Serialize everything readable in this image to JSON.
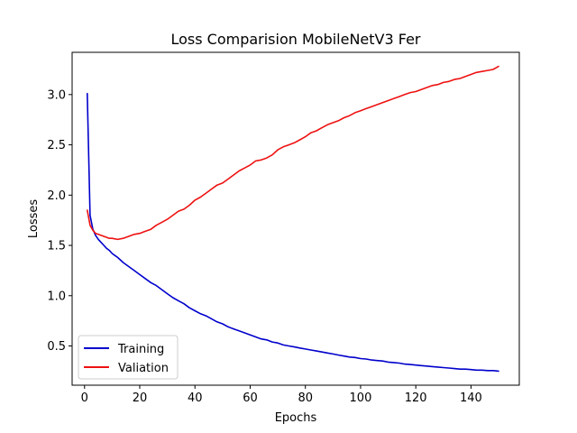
{
  "chart_data": {
    "type": "line",
    "title": "Loss Comparision MobileNetV3 Fer",
    "xlabel": "Epochs",
    "ylabel": "Losses",
    "xlim": [
      -4.5,
      157.5
    ],
    "ylim": [
      0.11,
      3.42
    ],
    "xticks": [
      0,
      20,
      40,
      60,
      80,
      100,
      120,
      140
    ],
    "yticks": [
      0.5,
      1.0,
      1.5,
      2.0,
      2.5,
      3.0
    ],
    "xtick_labels": [
      "0",
      "20",
      "40",
      "60",
      "80",
      "100",
      "120",
      "140"
    ],
    "ytick_labels": [
      "0.5",
      "1.0",
      "1.5",
      "2.0",
      "2.5",
      "3.0"
    ],
    "grid": false,
    "legend_position": "lower-left",
    "series": [
      {
        "name": "Training",
        "color": "#0000cc",
        "points": [
          [
            1,
            3.01
          ],
          [
            2,
            1.8
          ],
          [
            3,
            1.66
          ],
          [
            4,
            1.6
          ],
          [
            5,
            1.56
          ],
          [
            6,
            1.53
          ],
          [
            7,
            1.5
          ],
          [
            8,
            1.47
          ],
          [
            9,
            1.45
          ],
          [
            10,
            1.42
          ],
          [
            12,
            1.38
          ],
          [
            14,
            1.33
          ],
          [
            16,
            1.29
          ],
          [
            18,
            1.25
          ],
          [
            20,
            1.21
          ],
          [
            22,
            1.17
          ],
          [
            24,
            1.13
          ],
          [
            26,
            1.1
          ],
          [
            28,
            1.06
          ],
          [
            30,
            1.02
          ],
          [
            32,
            0.98
          ],
          [
            34,
            0.95
          ],
          [
            36,
            0.92
          ],
          [
            38,
            0.88
          ],
          [
            40,
            0.85
          ],
          [
            42,
            0.82
          ],
          [
            44,
            0.8
          ],
          [
            46,
            0.77
          ],
          [
            48,
            0.74
          ],
          [
            50,
            0.72
          ],
          [
            52,
            0.69
          ],
          [
            54,
            0.67
          ],
          [
            56,
            0.65
          ],
          [
            58,
            0.63
          ],
          [
            60,
            0.61
          ],
          [
            62,
            0.59
          ],
          [
            64,
            0.57
          ],
          [
            66,
            0.56
          ],
          [
            68,
            0.54
          ],
          [
            70,
            0.53
          ],
          [
            72,
            0.51
          ],
          [
            74,
            0.5
          ],
          [
            76,
            0.49
          ],
          [
            78,
            0.48
          ],
          [
            80,
            0.47
          ],
          [
            82,
            0.46
          ],
          [
            84,
            0.45
          ],
          [
            86,
            0.44
          ],
          [
            88,
            0.43
          ],
          [
            90,
            0.42
          ],
          [
            92,
            0.41
          ],
          [
            94,
            0.4
          ],
          [
            96,
            0.39
          ],
          [
            98,
            0.385
          ],
          [
            100,
            0.375
          ],
          [
            102,
            0.37
          ],
          [
            104,
            0.36
          ],
          [
            106,
            0.355
          ],
          [
            108,
            0.35
          ],
          [
            110,
            0.34
          ],
          [
            112,
            0.335
          ],
          [
            114,
            0.33
          ],
          [
            116,
            0.32
          ],
          [
            118,
            0.315
          ],
          [
            120,
            0.31
          ],
          [
            122,
            0.305
          ],
          [
            124,
            0.3
          ],
          [
            126,
            0.295
          ],
          [
            128,
            0.29
          ],
          [
            130,
            0.285
          ],
          [
            132,
            0.28
          ],
          [
            134,
            0.275
          ],
          [
            136,
            0.27
          ],
          [
            138,
            0.27
          ],
          [
            140,
            0.265
          ],
          [
            142,
            0.26
          ],
          [
            144,
            0.26
          ],
          [
            146,
            0.255
          ],
          [
            148,
            0.255
          ],
          [
            150,
            0.25
          ]
        ]
      },
      {
        "name": "Valiation",
        "color": "#ee1111",
        "points": [
          [
            1,
            1.85
          ],
          [
            2,
            1.7
          ],
          [
            3,
            1.65
          ],
          [
            4,
            1.62
          ],
          [
            5,
            1.61
          ],
          [
            6,
            1.6
          ],
          [
            7,
            1.59
          ],
          [
            8,
            1.58
          ],
          [
            9,
            1.57
          ],
          [
            10,
            1.57
          ],
          [
            12,
            1.56
          ],
          [
            14,
            1.57
          ],
          [
            16,
            1.59
          ],
          [
            18,
            1.61
          ],
          [
            20,
            1.62
          ],
          [
            22,
            1.64
          ],
          [
            24,
            1.66
          ],
          [
            26,
            1.7
          ],
          [
            28,
            1.73
          ],
          [
            30,
            1.76
          ],
          [
            32,
            1.8
          ],
          [
            34,
            1.84
          ],
          [
            36,
            1.86
          ],
          [
            38,
            1.9
          ],
          [
            40,
            1.95
          ],
          [
            42,
            1.98
          ],
          [
            44,
            2.02
          ],
          [
            46,
            2.06
          ],
          [
            48,
            2.1
          ],
          [
            50,
            2.12
          ],
          [
            52,
            2.16
          ],
          [
            54,
            2.2
          ],
          [
            56,
            2.24
          ],
          [
            58,
            2.27
          ],
          [
            60,
            2.3
          ],
          [
            62,
            2.34
          ],
          [
            64,
            2.35
          ],
          [
            66,
            2.37
          ],
          [
            68,
            2.4
          ],
          [
            70,
            2.45
          ],
          [
            72,
            2.48
          ],
          [
            74,
            2.5
          ],
          [
            76,
            2.52
          ],
          [
            78,
            2.55
          ],
          [
            80,
            2.58
          ],
          [
            82,
            2.62
          ],
          [
            84,
            2.64
          ],
          [
            86,
            2.67
          ],
          [
            88,
            2.7
          ],
          [
            90,
            2.72
          ],
          [
            92,
            2.74
          ],
          [
            94,
            2.77
          ],
          [
            96,
            2.79
          ],
          [
            98,
            2.82
          ],
          [
            100,
            2.84
          ],
          [
            102,
            2.86
          ],
          [
            104,
            2.88
          ],
          [
            106,
            2.9
          ],
          [
            108,
            2.92
          ],
          [
            110,
            2.94
          ],
          [
            112,
            2.96
          ],
          [
            114,
            2.98
          ],
          [
            116,
            3.0
          ],
          [
            118,
            3.02
          ],
          [
            120,
            3.03
          ],
          [
            122,
            3.05
          ],
          [
            124,
            3.07
          ],
          [
            126,
            3.09
          ],
          [
            128,
            3.1
          ],
          [
            130,
            3.12
          ],
          [
            132,
            3.13
          ],
          [
            134,
            3.15
          ],
          [
            136,
            3.16
          ],
          [
            138,
            3.18
          ],
          [
            140,
            3.2
          ],
          [
            142,
            3.22
          ],
          [
            144,
            3.23
          ],
          [
            146,
            3.24
          ],
          [
            148,
            3.25
          ],
          [
            150,
            3.28
          ]
        ]
      }
    ]
  }
}
